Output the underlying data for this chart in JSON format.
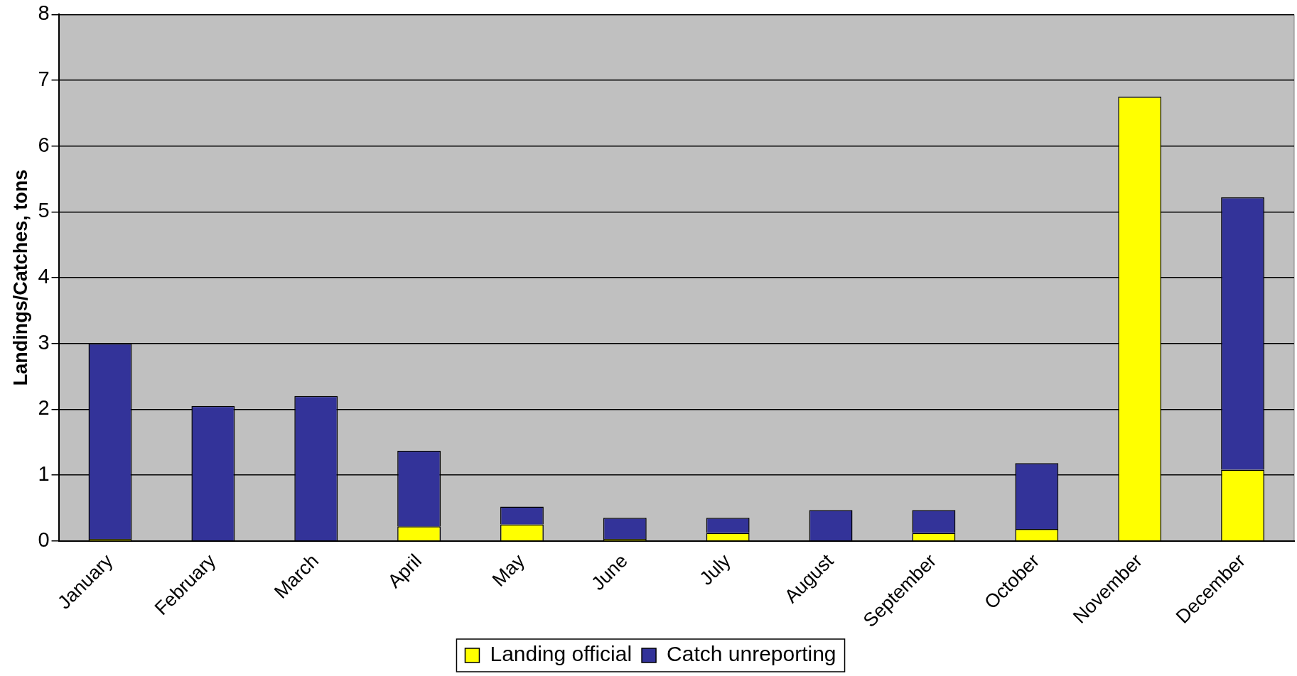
{
  "chart_data": {
    "type": "bar",
    "stacked": true,
    "ylabel": "Landings/Catches, tons",
    "categories": [
      "January",
      "February",
      "March",
      "April",
      "May",
      "June",
      "July",
      "August",
      "September",
      "October",
      "November",
      "December"
    ],
    "series": [
      {
        "name": "Landing official",
        "color": "#ffff00",
        "values": [
          0.03,
          0,
          0,
          0.22,
          0.25,
          0.03,
          0.12,
          0,
          0.12,
          0.18,
          6.75,
          1.08
        ]
      },
      {
        "name": "Catch unreporting",
        "color": "#333399",
        "values": [
          2.97,
          2.05,
          2.2,
          1.15,
          0.27,
          0.32,
          0.23,
          0.47,
          0.35,
          1.0,
          0,
          4.14
        ]
      }
    ],
    "ylim": [
      0,
      8
    ],
    "yticks": [
      0,
      1,
      2,
      3,
      4,
      5,
      6,
      7,
      8
    ],
    "grid": "y",
    "legend": "bottom"
  }
}
